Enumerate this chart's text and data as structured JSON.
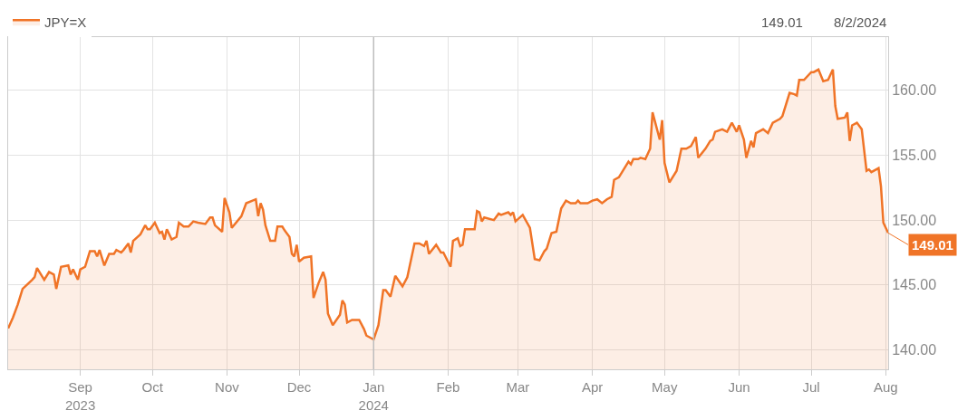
{
  "chart_data": {
    "type": "area",
    "annotations": [
      "149.01",
      "8/2/2024",
      {
        "text": "149.01",
        "x": "2024-08-02",
        "y": 149.01
      }
    ],
    "x": [
      "2023-08-02",
      "2023-08-04",
      "2023-08-06",
      "2023-08-08",
      "2023-08-12",
      "2023-08-13",
      "2023-08-14",
      "2023-08-17",
      "2023-08-19",
      "2023-08-21",
      "2023-08-22",
      "2023-08-24",
      "2023-08-27",
      "2023-08-28",
      "2023-08-29",
      "2023-08-31",
      "2023-09-01",
      "2023-09-03",
      "2023-09-05",
      "2023-09-07",
      "2023-09-08",
      "2023-09-09",
      "2023-09-11",
      "2023-09-13",
      "2023-09-15",
      "2023-09-16",
      "2023-09-18",
      "2023-09-19",
      "2023-09-21",
      "2023-09-22",
      "2023-09-23",
      "2023-09-26",
      "2023-09-28",
      "2023-09-29",
      "2023-09-30",
      "2023-10-02",
      "2023-10-04",
      "2023-10-05",
      "2023-10-06",
      "2023-10-07",
      "2023-10-09",
      "2023-10-11",
      "2023-10-12",
      "2023-10-14",
      "2023-10-16",
      "2023-10-18",
      "2023-10-20",
      "2023-10-23",
      "2023-10-25",
      "2023-10-26",
      "2023-10-27",
      "2023-10-30",
      "2023-10-31",
      "2023-11-02",
      "2023-11-03",
      "2023-11-07",
      "2023-11-09",
      "2023-11-13",
      "2023-11-14",
      "2023-11-15",
      "2023-11-16",
      "2023-11-17",
      "2023-11-19",
      "2023-11-21",
      "2023-11-22",
      "2023-11-24",
      "2023-11-25",
      "2023-11-27",
      "2023-11-28",
      "2023-11-29",
      "2023-11-30",
      "2023-12-01",
      "2023-12-03",
      "2023-12-06",
      "2023-12-07",
      "2023-12-09",
      "2023-12-11",
      "2023-12-12",
      "2023-12-13",
      "2023-12-15",
      "2023-12-18",
      "2023-12-19",
      "2023-12-20",
      "2023-12-21",
      "2023-12-23",
      "2023-12-26",
      "2023-12-28",
      "2023-12-29",
      "2024-01-01",
      "2024-01-03",
      "2024-01-05",
      "2024-01-06",
      "2024-01-08",
      "2024-01-10",
      "2024-01-13",
      "2024-01-15",
      "2024-01-18",
      "2024-01-20",
      "2024-01-22",
      "2024-01-23",
      "2024-01-24",
      "2024-01-27",
      "2024-01-29",
      "2024-01-30",
      "2024-02-02",
      "2024-02-03",
      "2024-02-05",
      "2024-02-06",
      "2024-02-07",
      "2024-02-08",
      "2024-02-12",
      "2024-02-13",
      "2024-02-14",
      "2024-02-15",
      "2024-02-16",
      "2024-02-20",
      "2024-02-22",
      "2024-02-23",
      "2024-02-26",
      "2024-02-27",
      "2024-02-28",
      "2024-02-29",
      "2024-03-03",
      "2024-03-06",
      "2024-03-08",
      "2024-03-10",
      "2024-03-12",
      "2024-03-13",
      "2024-03-15",
      "2024-03-17",
      "2024-03-19",
      "2024-03-21",
      "2024-03-23",
      "2024-03-25",
      "2024-03-26",
      "2024-03-27",
      "2024-03-30",
      "2024-04-01",
      "2024-04-03",
      "2024-04-05",
      "2024-04-07",
      "2024-04-09",
      "2024-04-10",
      "2024-04-12",
      "2024-04-15",
      "2024-04-16",
      "2024-04-17",
      "2024-04-18",
      "2024-04-20",
      "2024-04-21",
      "2024-04-23",
      "2024-04-25",
      "2024-04-26",
      "2024-04-29",
      "2024-04-30",
      "2024-05-01",
      "2024-05-03",
      "2024-05-06",
      "2024-05-08",
      "2024-05-10",
      "2024-05-12",
      "2024-05-14",
      "2024-05-15",
      "2024-05-18",
      "2024-05-20",
      "2024-05-21",
      "2024-05-22",
      "2024-05-25",
      "2024-05-27",
      "2024-05-29",
      "2024-05-31",
      "2024-06-01",
      "2024-06-03",
      "2024-06-04",
      "2024-06-06",
      "2024-06-07",
      "2024-06-08",
      "2024-06-11",
      "2024-06-13",
      "2024-06-15",
      "2024-06-18",
      "2024-06-19",
      "2024-06-22",
      "2024-06-24",
      "2024-06-25",
      "2024-06-26",
      "2024-06-28",
      "2024-07-01",
      "2024-07-02",
      "2024-07-04",
      "2024-07-06",
      "2024-07-08",
      "2024-07-10",
      "2024-07-11",
      "2024-07-12",
      "2024-07-15",
      "2024-07-16",
      "2024-07-17",
      "2024-07-18",
      "2024-07-20",
      "2024-07-22",
      "2024-07-24",
      "2024-07-25",
      "2024-07-26",
      "2024-07-29",
      "2024-07-30",
      "2024-07-31",
      "2024-08-02"
    ],
    "series": [
      {
        "name": "JPY=X",
        "color": "#f07427",
        "values": [
          141.65,
          142.5,
          143.5,
          144.7,
          145.4,
          145.6,
          146.3,
          145.4,
          146.0,
          145.8,
          144.7,
          146.4,
          146.5,
          145.8,
          146.2,
          145.4,
          146.2,
          146.4,
          147.6,
          147.6,
          147.2,
          147.7,
          146.5,
          147.4,
          147.4,
          147.7,
          147.5,
          147.7,
          148.2,
          147.5,
          148.4,
          148.9,
          149.6,
          149.3,
          149.3,
          149.8,
          149.0,
          149.1,
          148.5,
          149.3,
          148.5,
          148.7,
          149.8,
          149.5,
          149.5,
          149.9,
          149.8,
          149.7,
          150.2,
          150.2,
          149.6,
          149.1,
          151.7,
          150.6,
          149.4,
          150.3,
          151.3,
          151.6,
          150.3,
          151.3,
          150.8,
          149.6,
          148.4,
          148.4,
          149.5,
          149.5,
          149.2,
          148.7,
          147.4,
          147.2,
          148.1,
          146.8,
          147.1,
          147.2,
          144.0,
          145.1,
          146.0,
          145.4,
          142.8,
          141.9,
          142.7,
          143.8,
          143.5,
          142.1,
          142.3,
          142.3,
          141.6,
          141.1,
          140.8,
          141.9,
          144.6,
          144.6,
          144.1,
          145.7,
          144.9,
          145.6,
          148.2,
          148.2,
          148.0,
          148.4,
          147.4,
          148.1,
          147.5,
          147.5,
          146.4,
          148.4,
          148.6,
          148.0,
          148.1,
          149.3,
          149.3,
          150.7,
          150.6,
          149.9,
          150.2,
          150.0,
          150.5,
          150.4,
          150.6,
          150.4,
          150.6,
          149.9,
          150.4,
          149.4,
          147.0,
          146.9,
          147.6,
          147.8,
          149.0,
          149.1,
          150.9,
          151.5,
          151.3,
          151.3,
          151.5,
          151.3,
          151.3,
          151.5,
          151.6,
          151.3,
          151.6,
          151.8,
          153.1,
          153.3,
          154.2,
          154.5,
          154.3,
          154.7,
          154.7,
          154.8,
          154.7,
          155.5,
          158.3,
          156.2,
          157.7,
          154.4,
          152.9,
          153.8,
          155.5,
          155.5,
          155.7,
          156.4,
          154.8,
          155.5,
          156.1,
          156.2,
          156.8,
          157.0,
          156.8,
          157.5,
          156.8,
          157.3,
          156.2,
          154.8,
          156.1,
          155.6,
          156.7,
          157.0,
          156.7,
          157.5,
          157.8,
          158.0,
          159.8,
          159.7,
          159.6,
          160.8,
          160.8,
          161.4,
          161.4,
          161.6,
          160.7,
          160.8,
          161.6,
          158.8,
          157.8,
          157.9,
          158.3,
          156.1,
          157.3,
          157.5,
          157.0,
          153.8,
          153.9,
          153.7,
          154.0,
          152.6,
          149.8,
          149.01
        ]
      }
    ],
    "xlim": [
      "2023-08-02",
      "2024-08-02"
    ],
    "xticks": [
      {
        "value": "2023-09-01",
        "label": "Sep\n2023"
      },
      {
        "value": "2023-10-01",
        "label": "Oct"
      },
      {
        "value": "2023-11-01",
        "label": "Nov"
      },
      {
        "value": "2023-12-01",
        "label": "Dec"
      },
      {
        "value": "2024-01-01",
        "label": "Jan\n2024"
      },
      {
        "value": "2024-02-01",
        "label": "Feb"
      },
      {
        "value": "2024-03-01",
        "label": "Mar"
      },
      {
        "value": "2024-04-01",
        "label": "Apr"
      },
      {
        "value": "2024-05-01",
        "label": "May"
      },
      {
        "value": "2024-06-01",
        "label": "Jun"
      },
      {
        "value": "2024-07-01",
        "label": "Jul"
      },
      {
        "value": "2024-08-01",
        "label": "Aug"
      }
    ],
    "ylim": [
      138.5,
      164.1
    ],
    "yticks": [
      {
        "value": 140,
        "label": "140.00"
      },
      {
        "value": 145,
        "label": "145.00"
      },
      {
        "value": 150,
        "label": "150.00"
      },
      {
        "value": 155,
        "label": "155.00"
      },
      {
        "value": 160,
        "label": "160.00"
      }
    ],
    "ref_lines": [
      {
        "axis": "x",
        "value": "2024-01-01",
        "color": "#bdbdbd"
      }
    ],
    "grid": true,
    "legend": "top left",
    "marker": "none",
    "line_style": "solid"
  }
}
